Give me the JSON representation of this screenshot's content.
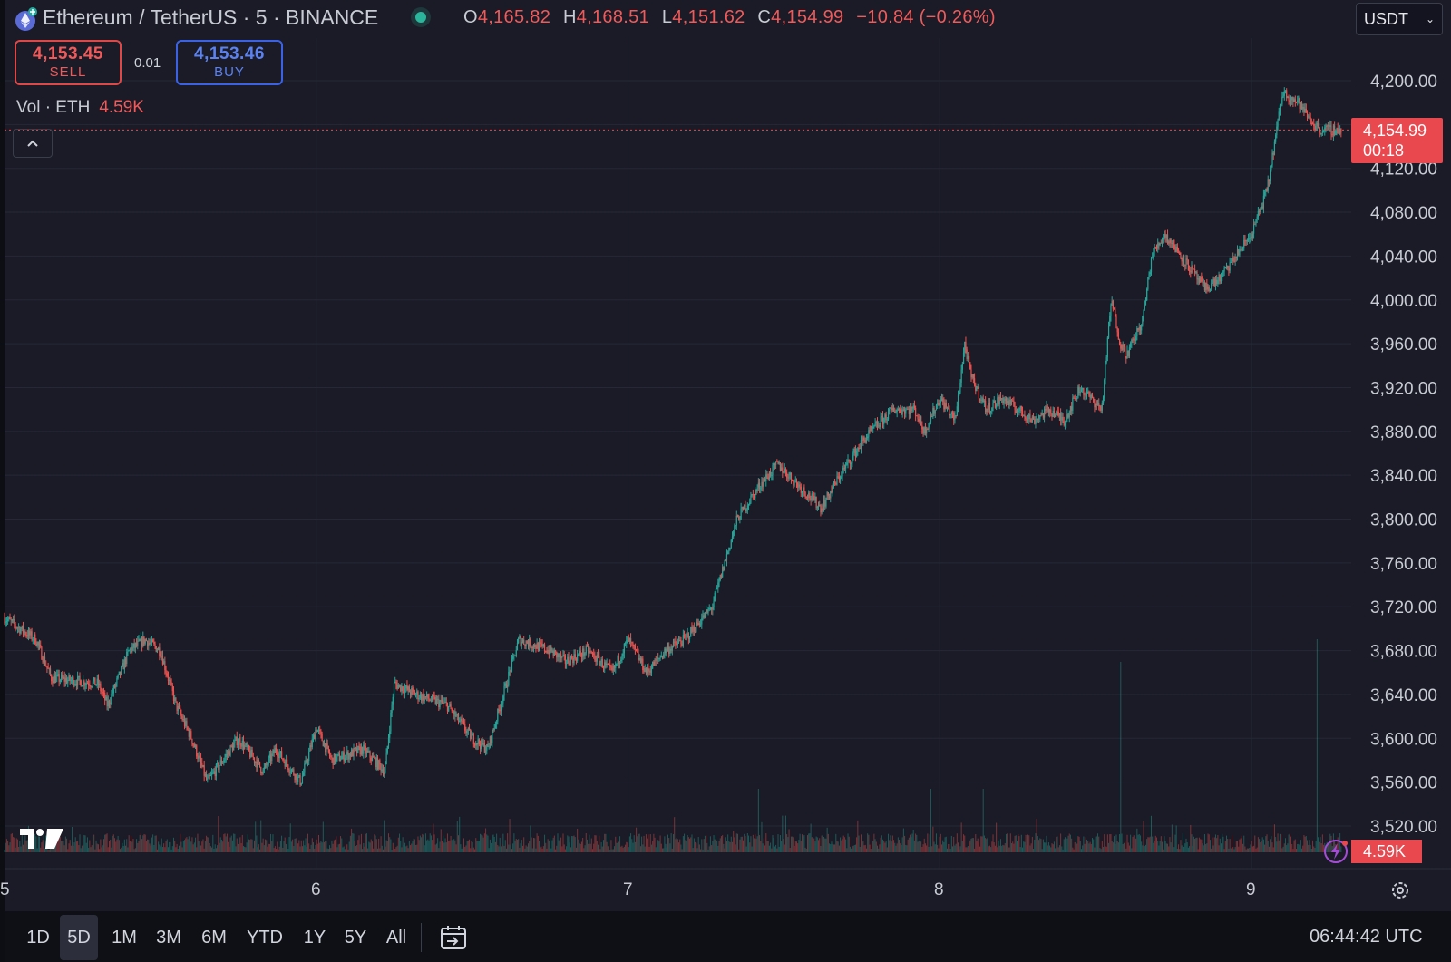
{
  "header": {
    "symbol_title": "Ethereum / TetherUS · 5 · BINANCE",
    "ohlc": {
      "o_key": "O",
      "o": "4,165.82",
      "h_key": "H",
      "h": "4,168.51",
      "l_key": "L",
      "l": "4,151.62",
      "c_key": "C",
      "c": "4,154.99",
      "change": "−10.84 (−0.26%)"
    },
    "currency": "USDT",
    "icons": [
      "ethereum-logo-icon",
      "market-status-dot-icon",
      "chevron-down-icon"
    ]
  },
  "trade": {
    "sell_price": "4,153.45",
    "sell_label": "SELL",
    "spread": "0.01",
    "buy_price": "4,153.46",
    "buy_label": "BUY"
  },
  "volume": {
    "label": "Vol · ETH",
    "value": "4.59K"
  },
  "price_axis": {
    "current_price": "4,154.99",
    "countdown": "00:18",
    "volume_tag": "4.59K",
    "ticks": [
      "4,200.00",
      "4,160.00",
      "4,120.00",
      "4,080.00",
      "4,040.00",
      "4,000.00",
      "3,960.00",
      "3,920.00",
      "3,880.00",
      "3,840.00",
      "3,800.00",
      "3,760.00",
      "3,720.00",
      "3,680.00",
      "3,640.00",
      "3,600.00",
      "3,560.00",
      "3,520.00"
    ]
  },
  "time_axis": {
    "ticks": [
      "5",
      "6",
      "7",
      "8",
      "9"
    ]
  },
  "toolbar": {
    "ranges": [
      "1D",
      "5D",
      "1M",
      "3M",
      "6M",
      "YTD",
      "1Y",
      "5Y",
      "All"
    ],
    "active_range": "5D",
    "clock": "06:44:42 UTC"
  },
  "colors": {
    "up": "#26a69a",
    "down": "#ef5350",
    "background": "#1a1b26",
    "accent_red": "#e8484e",
    "accent_blue": "#3a62e6"
  },
  "chart_data": {
    "type": "candlestick",
    "x_unit": "day",
    "ylim": [
      3500,
      4220
    ],
    "y_ticks": [
      3520,
      3560,
      3600,
      3640,
      3680,
      3720,
      3760,
      3800,
      3840,
      3880,
      3920,
      3960,
      4000,
      4040,
      4080,
      4120,
      4160,
      4200
    ],
    "x_ticks": [
      5,
      6,
      7,
      8,
      9
    ],
    "price_path": {
      "x": [
        5.0,
        5.1,
        5.15,
        5.3,
        5.33,
        5.4,
        5.45,
        5.5,
        5.55,
        5.6,
        5.65,
        5.75,
        5.83,
        5.87,
        5.95,
        6.0,
        6.05,
        6.15,
        6.22,
        6.25,
        6.32,
        6.42,
        6.5,
        6.55,
        6.6,
        6.65,
        6.75,
        6.8,
        6.87,
        6.95,
        7.0,
        7.06,
        7.12,
        7.18,
        7.27,
        7.32,
        7.35,
        7.42,
        7.48,
        7.55,
        7.62,
        7.68,
        7.75,
        7.78,
        7.85,
        7.92,
        7.95,
        8.0,
        8.05,
        8.08,
        8.1,
        8.15,
        8.2,
        8.3,
        8.35,
        8.4,
        8.45,
        8.52,
        8.55,
        8.58,
        8.6,
        8.65,
        8.68,
        8.72,
        8.75,
        8.8,
        8.85,
        8.9,
        8.95,
        9.0,
        9.05,
        9.1,
        9.15,
        9.2,
        9.22,
        9.23,
        9.25,
        9.28,
        9.29
      ],
      "close": [
        3710,
        3690,
        3655,
        3650,
        3630,
        3680,
        3690,
        3680,
        3630,
        3600,
        3560,
        3600,
        3570,
        3590,
        3560,
        3610,
        3580,
        3590,
        3570,
        3650,
        3640,
        3630,
        3600,
        3590,
        3640,
        3690,
        3680,
        3670,
        3680,
        3660,
        3690,
        3660,
        3680,
        3690,
        3720,
        3770,
        3800,
        3830,
        3850,
        3830,
        3810,
        3840,
        3870,
        3880,
        3900,
        3900,
        3880,
        3910,
        3890,
        3960,
        3930,
        3900,
        3910,
        3890,
        3900,
        3890,
        3920,
        3900,
        4000,
        3960,
        3950,
        3980,
        4040,
        4060,
        4050,
        4030,
        4010,
        4020,
        4040,
        4060,
        4100,
        4190,
        4180,
        4160,
        4155,
        4154.99,
        4154.99,
        4154.99,
        4154.99
      ]
    },
    "volume_spikes": [
      {
        "x": 7.42,
        "eth": "spike"
      },
      {
        "x": 7.97,
        "eth": "spike"
      },
      {
        "x": 8.14,
        "eth": "spike"
      },
      {
        "x": 8.58,
        "eth": "large"
      },
      {
        "x": 9.21,
        "eth": "largest"
      }
    ],
    "last_volume": "4.59K",
    "current_price": 4154.99
  }
}
